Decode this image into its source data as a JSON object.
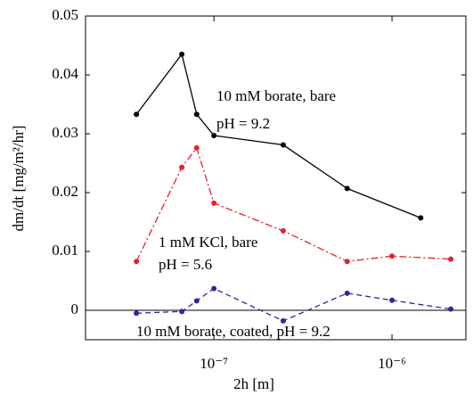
{
  "chart_data": {
    "type": "line",
    "xlabel": "2h [m]",
    "ylabel": "dm/dt [mg/m²/hr]",
    "xscale": "log",
    "xlim": [
      1.9e-08,
      2.6e-06
    ],
    "ylim": [
      -0.005,
      0.05
    ],
    "xticks": [
      {
        "value": 1e-07,
        "label": "10⁻⁷"
      },
      {
        "value": 1e-06,
        "label": "10⁻⁶"
      }
    ],
    "yticks": [
      0,
      0.01,
      0.02,
      0.03,
      0.04,
      0.05
    ],
    "zero_line": true,
    "series": [
      {
        "name": "10 mM borate, bare",
        "color": "#000000",
        "style": "solid",
        "x": [
          3.67e-08,
          6.6e-08,
          8e-08,
          1e-07,
          2.45e-07,
          5.6e-07,
          1.45e-06
        ],
        "values": [
          0.0333,
          0.0435,
          0.0333,
          0.0297,
          0.0281,
          0.0207,
          0.0157
        ]
      },
      {
        "name": "1 mM KCl, bare",
        "color": "#e8202a",
        "style": "dashdot",
        "x": [
          3.67e-08,
          6.6e-08,
          8e-08,
          1e-07,
          2.45e-07,
          5.6e-07,
          1e-06,
          2.14e-06
        ],
        "values": [
          0.0083,
          0.0243,
          0.0276,
          0.0182,
          0.0135,
          0.0083,
          0.0092,
          0.0087
        ]
      },
      {
        "name": "10 mM borate, coated",
        "color": "#2a2a9a",
        "style": "dashed",
        "x": [
          3.67e-08,
          6.6e-08,
          8e-08,
          1e-07,
          2.45e-07,
          5.6e-07,
          1e-06,
          2.14e-06
        ],
        "values": [
          -0.0005,
          -0.0002,
          0.0016,
          0.0037,
          -0.0018,
          0.0029,
          0.0017,
          0.0002
        ]
      }
    ],
    "annotations": [
      "10 mM borate, bare",
      "pH = 9.2",
      "1 mM KCl, bare",
      "pH = 5.6",
      "10 mM borate, coated, pH = 9.2"
    ]
  }
}
